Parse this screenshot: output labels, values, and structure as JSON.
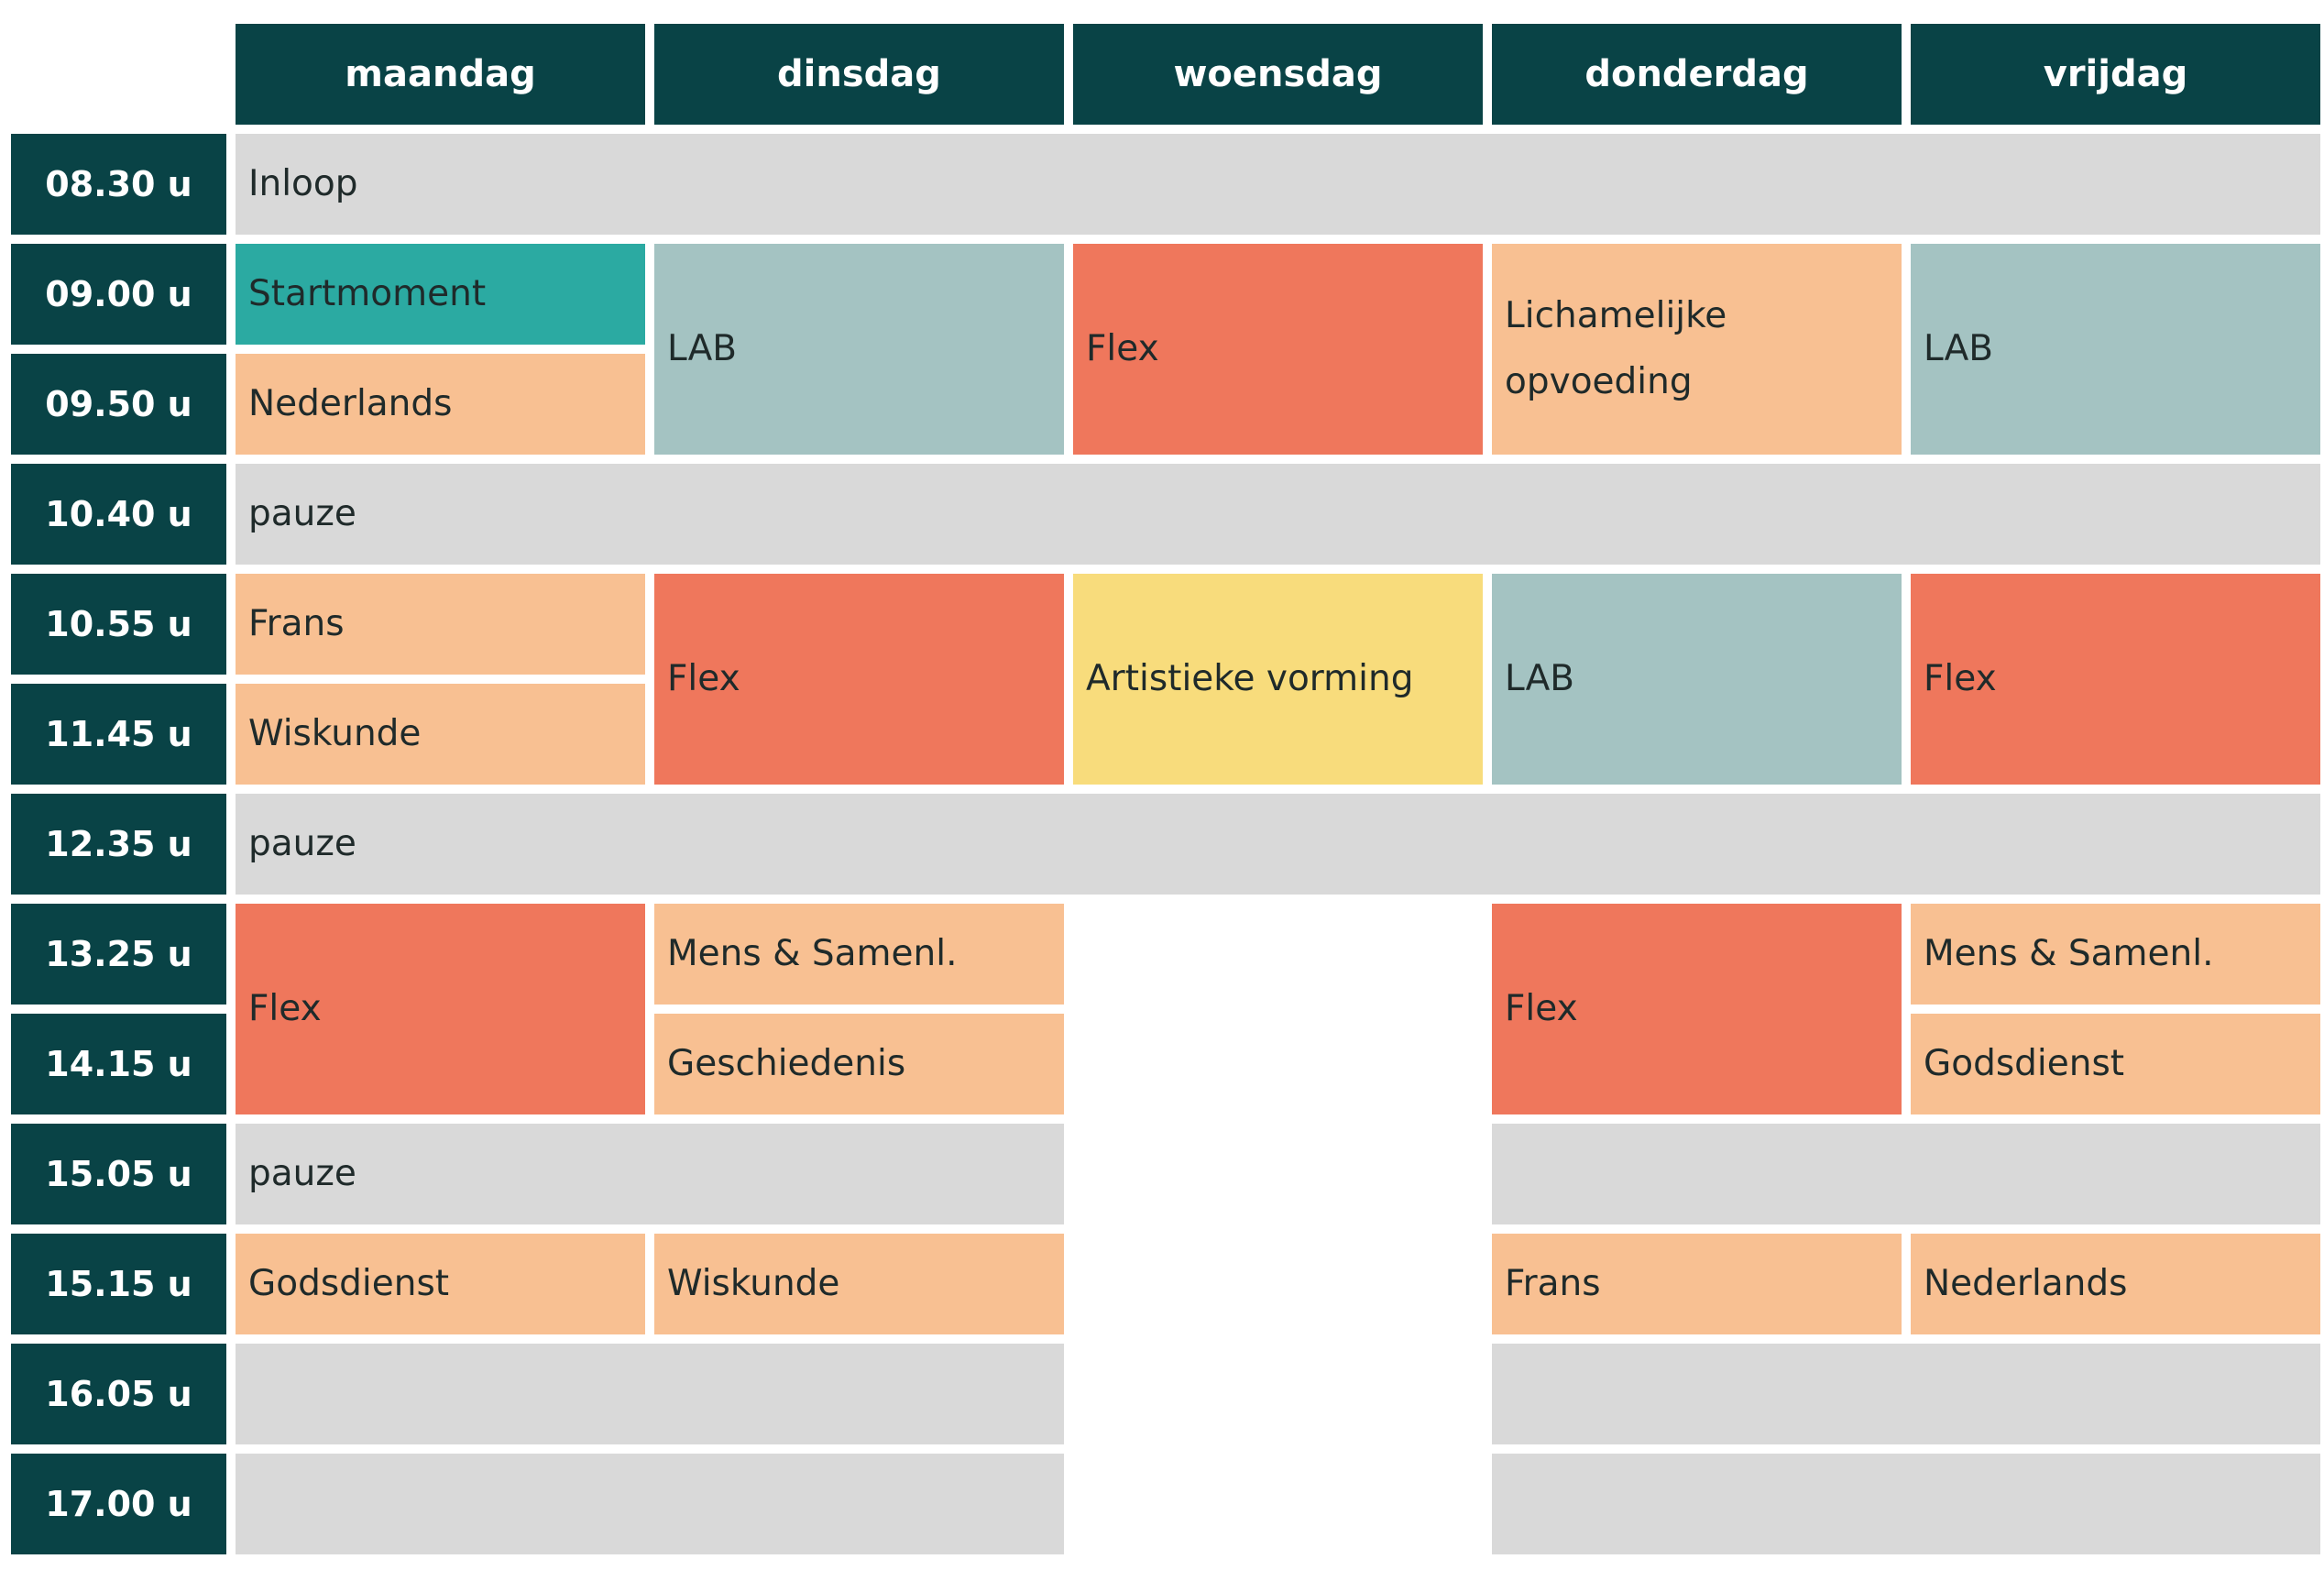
{
  "days": [
    "maandag",
    "dinsdag",
    "woensdag",
    "donderdag",
    "vrijdag"
  ],
  "times": [
    "08.30 u",
    "09.00 u",
    "09.50 u",
    "10.40 u",
    "10.55 u",
    "11.45 u",
    "12.35 u",
    "13.25 u",
    "14.15 u",
    "15.05 u",
    "15.15 u",
    "16.05 u",
    "17.00 u"
  ],
  "colors": {
    "header": "#094346",
    "gray": "#d9d9d9",
    "teal": "#2baaa2",
    "peach": "#f8c092",
    "slate": "#a4c3c2",
    "coral": "#ef775c",
    "yellow": "#f8dc7c"
  },
  "cells": {
    "inloop": "Inloop",
    "mon_start": "Startmoment",
    "mon_ned": "Nederlands",
    "tue_lab": "LAB",
    "wed_flex": "Flex",
    "thu_lo": "Lichamelijke opvoeding",
    "fri_lab": "LAB",
    "pauze1": "pauze",
    "mon_frans": "Frans",
    "mon_wisk": "Wiskunde",
    "tue_flex": "Flex",
    "wed_art": "Artistieke vorming",
    "thu_lab": "LAB",
    "fri_flex": "Flex",
    "pauze2": "pauze",
    "mon_flex": "Flex",
    "tue_mens": "Mens & Samenl.",
    "tue_gesch": "Geschiedenis",
    "thu_flex": "Flex",
    "fri_mens": "Mens & Samenl.",
    "fri_gods": "Godsdienst",
    "pauze3": "pauze",
    "mon_gods": "Godsdienst",
    "tue_wisk": "Wiskunde",
    "thu_frans": "Frans",
    "fri_ned": "Nederlands"
  }
}
